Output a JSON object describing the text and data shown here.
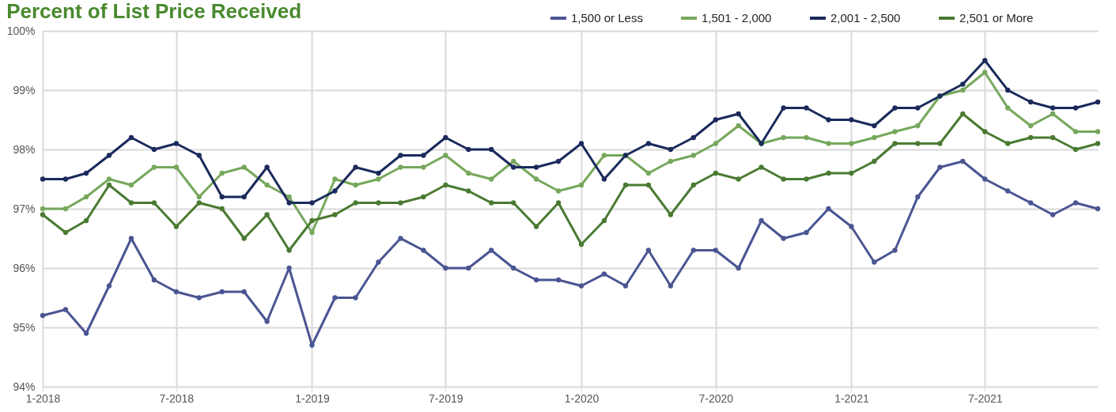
{
  "chart_data": {
    "type": "line",
    "title": "Percent of List Price Received",
    "x": [
      "2018-01",
      "2018-02",
      "2018-03",
      "2018-04",
      "2018-05",
      "2018-06",
      "2018-07",
      "2018-08",
      "2018-09",
      "2018-10",
      "2018-11",
      "2018-12",
      "2019-01",
      "2019-02",
      "2019-03",
      "2019-04",
      "2019-05",
      "2019-06",
      "2019-07",
      "2019-08",
      "2019-09",
      "2019-10",
      "2019-11",
      "2019-12",
      "2020-01",
      "2020-02",
      "2020-03",
      "2020-04",
      "2020-05",
      "2020-06",
      "2020-07",
      "2020-08",
      "2020-09",
      "2020-10",
      "2020-11",
      "2020-12",
      "2021-01",
      "2021-02",
      "2021-03",
      "2021-04",
      "2021-05",
      "2021-06",
      "2021-07",
      "2021-08",
      "2021-09",
      "2021-10",
      "2021-11",
      "2021-12"
    ],
    "series": [
      {
        "name": "1,500 or Less",
        "color": "#4a5592",
        "values": [
          95.2,
          95.3,
          94.9,
          95.7,
          96.5,
          95.8,
          95.6,
          95.5,
          95.6,
          95.6,
          95.1,
          96.0,
          94.7,
          95.5,
          95.5,
          96.1,
          96.5,
          96.3,
          96.0,
          96.0,
          96.3,
          96.0,
          95.8,
          95.8,
          95.7,
          95.9,
          95.7,
          96.3,
          95.7,
          96.3,
          96.3,
          96.0,
          96.8,
          96.5,
          96.6,
          97.0,
          96.7,
          96.1,
          96.3,
          97.2,
          97.7,
          97.8,
          97.5,
          97.3,
          97.1,
          96.9,
          97.1,
          97.0
        ]
      },
      {
        "name": "1,501 - 2,000",
        "color": "#76a85c",
        "values": [
          97.0,
          97.0,
          97.2,
          97.5,
          97.4,
          97.7,
          97.7,
          97.2,
          97.6,
          97.7,
          97.4,
          97.2,
          96.6,
          97.5,
          97.4,
          97.5,
          97.7,
          97.7,
          97.9,
          97.6,
          97.5,
          97.8,
          97.5,
          97.3,
          97.4,
          97.9,
          97.9,
          97.6,
          97.8,
          97.9,
          98.1,
          98.4,
          98.1,
          98.2,
          98.2,
          98.1,
          98.1,
          98.2,
          98.3,
          98.4,
          98.9,
          99.0,
          99.3,
          98.7,
          98.4,
          98.6,
          98.3,
          98.3
        ]
      },
      {
        "name": "2,001 - 2,500",
        "color": "#1b2a5c",
        "values": [
          97.5,
          97.5,
          97.6,
          97.9,
          98.2,
          98.0,
          98.1,
          97.9,
          97.2,
          97.2,
          97.7,
          97.1,
          97.1,
          97.3,
          97.7,
          97.6,
          97.9,
          97.9,
          98.2,
          98.0,
          98.0,
          97.7,
          97.7,
          97.8,
          98.1,
          97.5,
          97.9,
          98.1,
          98.0,
          98.2,
          98.5,
          98.6,
          98.1,
          98.7,
          98.7,
          98.5,
          98.5,
          98.4,
          98.7,
          98.7,
          98.9,
          99.1,
          99.5,
          99.0,
          98.8,
          98.7,
          98.7,
          98.8
        ]
      },
      {
        "name": "2,501 or More",
        "color": "#4a7a32",
        "values": [
          96.9,
          96.6,
          96.8,
          97.4,
          97.1,
          97.1,
          96.7,
          97.1,
          97.0,
          96.5,
          96.9,
          96.3,
          96.8,
          96.9,
          97.1,
          97.1,
          97.1,
          97.2,
          97.4,
          97.3,
          97.1,
          97.1,
          96.7,
          97.1,
          96.4,
          96.8,
          97.4,
          97.4,
          96.9,
          97.4,
          97.6,
          97.5,
          97.7,
          97.5,
          97.5,
          97.6,
          97.6,
          97.8,
          98.1,
          98.1,
          98.1,
          98.6,
          98.3,
          98.1,
          98.2,
          98.2,
          98.0,
          98.1
        ]
      }
    ],
    "xlim": [
      "2018-01",
      "2021-12"
    ],
    "xticks": [
      {
        "value": "2018-01",
        "label": "1-2018"
      },
      {
        "value": "2018-07",
        "label": "7-2018"
      },
      {
        "value": "2019-01",
        "label": "1-2019"
      },
      {
        "value": "2019-07",
        "label": "7-2019"
      },
      {
        "value": "2020-01",
        "label": "1-2020"
      },
      {
        "value": "2020-07",
        "label": "7-2020"
      },
      {
        "value": "2021-01",
        "label": "1-2021"
      },
      {
        "value": "2021-07",
        "label": "7-2021"
      }
    ],
    "ylim": [
      94,
      100
    ],
    "yticks": [
      {
        "value": 94,
        "label": "94%"
      },
      {
        "value": 95,
        "label": "95%"
      },
      {
        "value": 96,
        "label": "96%"
      },
      {
        "value": 97,
        "label": "97%"
      },
      {
        "value": 98,
        "label": "98%"
      },
      {
        "value": 99,
        "label": "99%"
      },
      {
        "value": 100,
        "label": "100%"
      }
    ],
    "grid": true,
    "legend": "top right",
    "marker": "circle",
    "line_style": "solid"
  }
}
